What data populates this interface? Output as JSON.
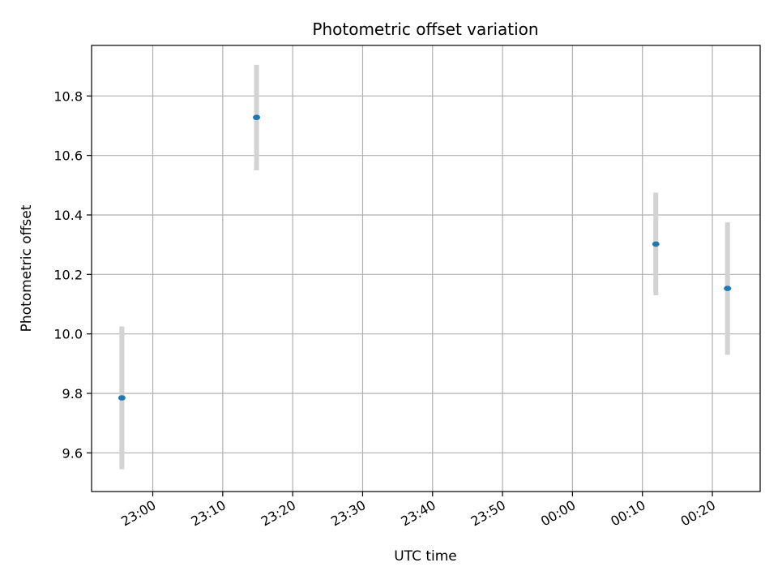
{
  "chart_data": {
    "type": "scatter",
    "title": "Photometric offset variation",
    "xlabel": "UTC time",
    "ylabel": "Photometric offset",
    "grid": true,
    "ylim": [
      9.47,
      10.97
    ],
    "xlim": [
      "22:51:15",
      "00:26:50"
    ],
    "y_ticks": [
      9.6,
      9.8,
      10.0,
      10.2,
      10.4,
      10.6,
      10.8
    ],
    "y_tick_labels": [
      "9.6",
      "9.8",
      "10.0",
      "10.2",
      "10.4",
      "10.6",
      "10.8"
    ],
    "x_ticks": [
      "23:00",
      "23:10",
      "23:20",
      "23:30",
      "23:40",
      "23:50",
      "00:00",
      "00:10",
      "00:20"
    ],
    "x_tick_labels": [
      "23:00",
      "23:10",
      "23:20",
      "23:30",
      "23:40",
      "23:50",
      "00:00",
      "00:10",
      "00:20"
    ],
    "points": [
      {
        "x": "22:55:35",
        "y": 9.785,
        "err_low": 9.545,
        "err_high": 10.025
      },
      {
        "x": "23:14:50",
        "y": 10.728,
        "err_low": 10.55,
        "err_high": 10.905
      },
      {
        "x": "00:11:55",
        "y": 10.302,
        "err_low": 10.13,
        "err_high": 10.475
      },
      {
        "x": "00:22:10",
        "y": 10.153,
        "err_low": 9.93,
        "err_high": 10.375
      }
    ],
    "colors": {
      "point": "#1f77b4",
      "errorbar": "#d3d3d3",
      "grid": "#b0b0b0",
      "axis": "#000000"
    }
  }
}
